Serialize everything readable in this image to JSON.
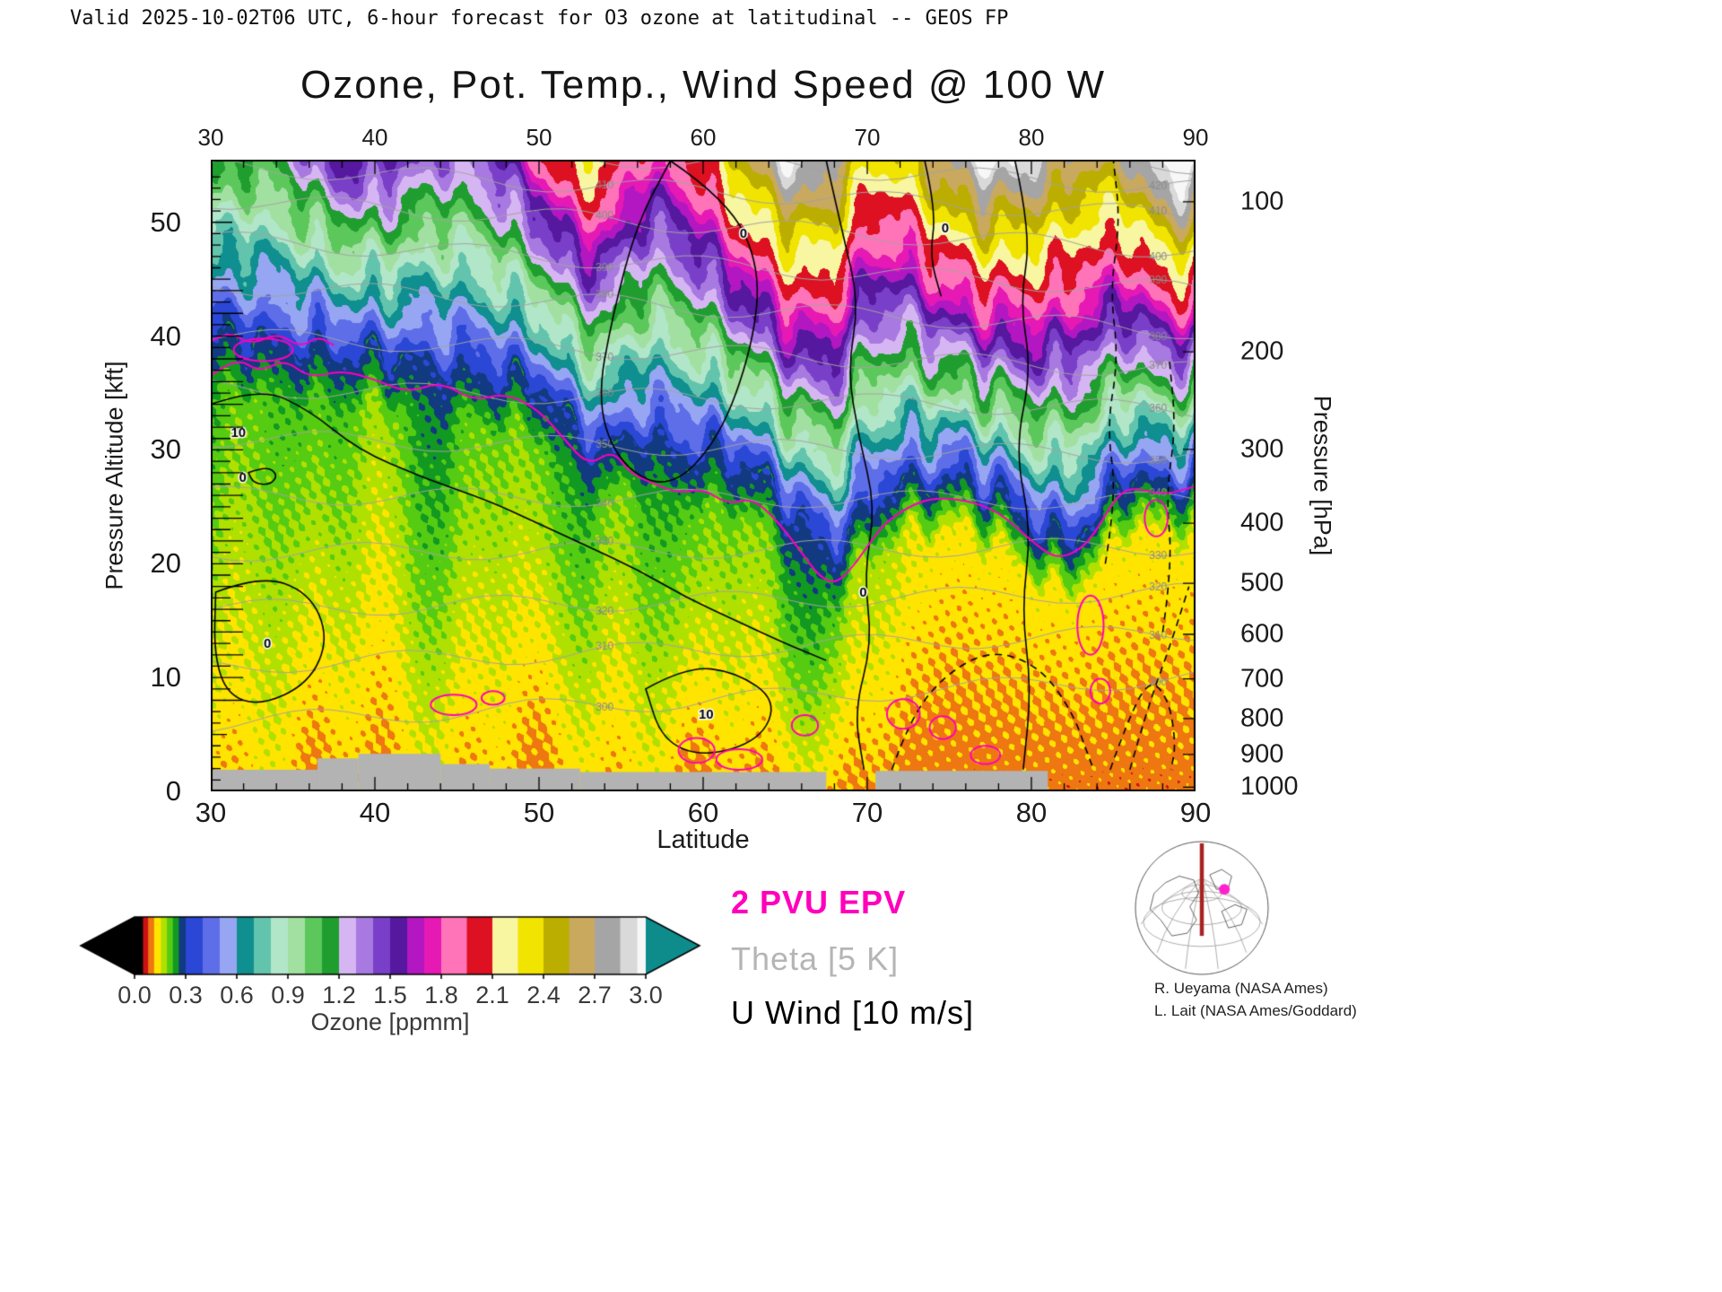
{
  "header": {
    "valid_line": "Valid 2025-10-02T06 UTC, 6-hour forecast for O3 ozone at latitudinal -- GEOS FP"
  },
  "title": "Ozone, Pot. Temp., Wind Speed @ 100 W",
  "axes": {
    "x": {
      "label": "Latitude",
      "min": 30,
      "max": 90,
      "ticks": [
        30,
        40,
        50,
        60,
        70,
        80,
        90
      ]
    },
    "y_left": {
      "label": "Pressure Altitude [kft]",
      "min": 0,
      "max": 55.5,
      "ticks": [
        0,
        10,
        20,
        30,
        40,
        50
      ]
    },
    "y_right": {
      "label": "Pressure [hPa]",
      "ticks": [
        100,
        200,
        300,
        400,
        500,
        600,
        700,
        800,
        900,
        1000
      ]
    }
  },
  "colorbar": {
    "label": "Ozone [ppmm]",
    "tick_labels": [
      "0.0",
      "0.3",
      "0.6",
      "0.9",
      "1.2",
      "1.5",
      "1.8",
      "2.1",
      "2.4",
      "2.7",
      "3.0"
    ],
    "min": 0.0,
    "max": 3.0,
    "under_color": "#000000",
    "over_color": "#0e8c8c",
    "stops": [
      {
        "v": 0.0,
        "c": "#000000"
      },
      {
        "v": 0.05,
        "c": "#cc1111"
      },
      {
        "v": 0.08,
        "c": "#ee7711"
      },
      {
        "v": 0.115,
        "c": "#ffe400"
      },
      {
        "v": 0.155,
        "c": "#b0e000"
      },
      {
        "v": 0.19,
        "c": "#55cc11"
      },
      {
        "v": 0.225,
        "c": "#119922"
      },
      {
        "v": 0.26,
        "c": "#123a80"
      },
      {
        "v": 0.3,
        "c": "#2b47d6"
      },
      {
        "v": 0.4,
        "c": "#5e6ee8"
      },
      {
        "v": 0.5,
        "c": "#97a6f2"
      },
      {
        "v": 0.6,
        "c": "#0f8f8f"
      },
      {
        "v": 0.7,
        "c": "#63c4ad"
      },
      {
        "v": 0.8,
        "c": "#b2e6c8"
      },
      {
        "v": 0.9,
        "c": "#a2e0a2"
      },
      {
        "v": 1.0,
        "c": "#5cc85c"
      },
      {
        "v": 1.1,
        "c": "#1f9e2f"
      },
      {
        "v": 1.2,
        "c": "#d6b6f2"
      },
      {
        "v": 1.3,
        "c": "#a879e0"
      },
      {
        "v": 1.4,
        "c": "#7a3fc8"
      },
      {
        "v": 1.5,
        "c": "#55189e"
      },
      {
        "v": 1.6,
        "c": "#b217c2"
      },
      {
        "v": 1.7,
        "c": "#e619b4"
      },
      {
        "v": 1.8,
        "c": "#ff74b8"
      },
      {
        "v": 1.95,
        "c": "#dd1122"
      },
      {
        "v": 2.1,
        "c": "#f8f6a0"
      },
      {
        "v": 2.25,
        "c": "#f0e400"
      },
      {
        "v": 2.4,
        "c": "#bcae00"
      },
      {
        "v": 2.55,
        "c": "#c9a95e"
      },
      {
        "v": 2.7,
        "c": "#a5a5a5"
      },
      {
        "v": 2.85,
        "c": "#d9d9d9"
      },
      {
        "v": 2.95,
        "c": "#f7f7f7"
      }
    ]
  },
  "legend": [
    {
      "label": "2 PVU EPV",
      "color": "#ff00bb"
    },
    {
      "label": "Theta [5 K]",
      "color": "#b5b5b5"
    },
    {
      "label": "U Wind [10 m/s]",
      "color": "#000000"
    }
  ],
  "credits": [
    "R. Ueyama (NASA Ames)",
    "L. Lait (NASA Ames/Goddard)"
  ],
  "chart_data": {
    "type": "heatmap",
    "title": "Ozone, Pot. Temp., Wind Speed @ 100 W",
    "xlabel": "Latitude",
    "ylabel": "Pressure Altitude [kft]",
    "xlim": [
      30,
      90
    ],
    "ylim": [
      0,
      55.5
    ],
    "field_units": "ppmm",
    "field_model": {
      "tropopause_kft": [
        [
          30,
          40
        ],
        [
          34,
          39.5
        ],
        [
          38,
          38.5
        ],
        [
          42,
          38
        ],
        [
          46,
          37
        ],
        [
          50,
          35.5
        ],
        [
          52,
          32
        ],
        [
          54,
          29.5
        ],
        [
          56,
          31.5
        ],
        [
          58,
          30.5
        ],
        [
          60,
          29.5
        ],
        [
          62,
          29
        ],
        [
          64,
          27
        ],
        [
          66,
          23.5
        ],
        [
          68,
          21
        ],
        [
          70,
          25
        ],
        [
          72,
          27
        ],
        [
          74,
          27.5
        ],
        [
          76,
          27.5
        ],
        [
          78,
          26
        ],
        [
          80,
          23.5
        ],
        [
          82,
          21.5
        ],
        [
          84,
          24
        ],
        [
          86,
          28
        ],
        [
          88,
          27
        ],
        [
          90,
          27.5
        ]
      ],
      "tropopause_value_ppmm": 0.3,
      "surface_value_ppmm": 0.118,
      "strat_gradient_ppmm_per_kft": 0.06,
      "strat_gradient_polar_increase_per_deg": 0.00045
    },
    "terrain_kft": [
      [
        30,
        36.5,
        1.9
      ],
      [
        36.5,
        39,
        2.9
      ],
      [
        39,
        44,
        3.3
      ],
      [
        44,
        47,
        2.4
      ],
      [
        47,
        52.5,
        2.0
      ],
      [
        52.5,
        67.5,
        1.7
      ],
      [
        70.5,
        81,
        1.8
      ]
    ],
    "theta_lines": [
      {
        "value": 300,
        "zL": 6,
        "zR": 10
      },
      {
        "value": 310,
        "zL": 11,
        "zR": 14
      },
      {
        "value": 320,
        "zL": 16,
        "zR": 17.5
      },
      {
        "value": 330,
        "zL": 21,
        "zR": 21.5
      },
      {
        "value": 340,
        "zL": 26,
        "zR": 25.5
      },
      {
        "value": 350,
        "zL": 31,
        "zR": 29.5
      },
      {
        "value": 360,
        "zL": 35.5,
        "zR": 33.5
      },
      {
        "value": 370,
        "zL": 40,
        "zR": 37
      },
      {
        "value": 380,
        "zL": 44.5,
        "zR": 40.5
      },
      {
        "value": 390,
        "zL": 48.5,
        "zR": 44
      },
      {
        "value": 400,
        "zL": 52,
        "zR": 47.5
      },
      {
        "value": 410,
        "zL": 55,
        "zR": 50.5
      },
      {
        "value": 420,
        "zL": 57.5,
        "zR": 53
      },
      {
        "value": 430,
        "zL": 60,
        "zR": 55
      }
    ],
    "wind_contours": [
      {
        "style": "solid",
        "label": "10",
        "label_at": [
          31.5,
          31.5
        ],
        "points": [
          [
            30,
            34
          ],
          [
            33,
            35.5
          ],
          [
            36,
            33.5
          ],
          [
            39,
            30
          ],
          [
            43,
            27.5
          ],
          [
            47,
            25.5
          ],
          [
            50,
            23.5
          ],
          [
            53,
            21.5
          ],
          [
            56,
            19.5
          ],
          [
            59,
            17
          ],
          [
            62,
            15
          ],
          [
            65,
            13
          ],
          [
            67.5,
            11.5
          ]
        ]
      },
      {
        "style": "solid",
        "label": "0",
        "label_at": [
          62.5,
          49
        ],
        "points": [
          [
            58,
            55.4
          ],
          [
            61.5,
            52
          ],
          [
            63.5,
            46
          ],
          [
            63,
            39
          ],
          [
            61,
            31
          ],
          [
            58,
            26.5
          ],
          [
            55,
            28.5
          ],
          [
            53.5,
            34
          ],
          [
            54.5,
            42
          ],
          [
            56,
            50
          ],
          [
            58,
            55.4
          ]
        ]
      },
      {
        "style": "solid",
        "label": "0",
        "label_at": [
          69.8,
          17.5
        ],
        "points": [
          [
            67.5,
            55.4
          ],
          [
            68.5,
            49
          ],
          [
            69.5,
            43
          ],
          [
            68.8,
            37
          ],
          [
            69.5,
            31
          ],
          [
            70.5,
            25
          ],
          [
            69.8,
            19
          ],
          [
            70.3,
            13
          ],
          [
            69.2,
            7
          ],
          [
            69.8,
            1.9
          ]
        ]
      },
      {
        "style": "solid",
        "label": "",
        "label_at": [
          79.6,
          33
        ],
        "points": [
          [
            79,
            55.4
          ],
          [
            80,
            49
          ],
          [
            79.3,
            43
          ],
          [
            80,
            37
          ],
          [
            79,
            30
          ],
          [
            80,
            23
          ],
          [
            79.4,
            16
          ],
          [
            80,
            9
          ],
          [
            79.5,
            1.9
          ]
        ]
      },
      {
        "style": "solid",
        "label": "0",
        "label_at": [
          33.5,
          13
        ],
        "points": [
          [
            30.3,
            17.5
          ],
          [
            33,
            19
          ],
          [
            36,
            17.5
          ],
          [
            37.2,
            13.5
          ],
          [
            36,
            9.5
          ],
          [
            33,
            7.5
          ],
          [
            31,
            8.5
          ],
          [
            30.2,
            12
          ],
          [
            30.3,
            17.5
          ]
        ]
      },
      {
        "style": "solid",
        "label": "0",
        "label_at": [
          32.0,
          27.6
        ],
        "points": [
          [
            32.3,
            28
          ],
          [
            33.4,
            28.6
          ],
          [
            34.1,
            27.8
          ],
          [
            33.6,
            26.9
          ],
          [
            32.6,
            27.1
          ],
          [
            32.3,
            28
          ]
        ]
      },
      {
        "style": "solid",
        "label": "10",
        "label_at": [
          60,
          6.8
        ],
        "points": [
          [
            56.5,
            9
          ],
          [
            59,
            11
          ],
          [
            62,
            10.5
          ],
          [
            64.5,
            8
          ],
          [
            63.5,
            4.5
          ],
          [
            60,
            3
          ],
          [
            57.5,
            4.5
          ],
          [
            56.5,
            9
          ]
        ]
      },
      {
        "style": "dashed",
        "label": "",
        "label_at": [
          77,
          9
        ],
        "points": [
          [
            71.5,
            1.9
          ],
          [
            72.5,
            6
          ],
          [
            74.5,
            10
          ],
          [
            77.5,
            12.5
          ],
          [
            80.5,
            11
          ],
          [
            82.5,
            7
          ],
          [
            83.5,
            3
          ],
          [
            83.8,
            1.9
          ]
        ]
      },
      {
        "style": "dashed",
        "label": "",
        "label_at": [
          87,
          7
        ],
        "points": [
          [
            84.8,
            1.9
          ],
          [
            85.8,
            6
          ],
          [
            87.2,
            10
          ],
          [
            88.4,
            8
          ],
          [
            88.8,
            4
          ],
          [
            88.5,
            1.9
          ]
        ]
      },
      {
        "style": "dashed",
        "label": "",
        "label_at": [
          85,
          36
        ],
        "points": [
          [
            84.5,
            20
          ],
          [
            85.2,
            26
          ],
          [
            84.6,
            32
          ],
          [
            85.3,
            38
          ],
          [
            84.8,
            44
          ],
          [
            85.4,
            50
          ],
          [
            85,
            55.4
          ]
        ]
      },
      {
        "style": "dashed",
        "label": "",
        "label_at": [
          88.5,
          26
        ],
        "points": [
          [
            88,
            14
          ],
          [
            88.6,
            20
          ],
          [
            88.2,
            26
          ],
          [
            88.8,
            32
          ],
          [
            88.4,
            38
          ]
        ]
      },
      {
        "style": "dashed",
        "label": "",
        "label_at": [
          88,
          12
        ],
        "points": [
          [
            86,
            1.9
          ],
          [
            87,
            7
          ],
          [
            88.5,
            13
          ],
          [
            89.6,
            18
          ]
        ]
      },
      {
        "style": "solid",
        "label": "0",
        "label_at": [
          74.8,
          49.5
        ],
        "points": [
          [
            73.5,
            55.4
          ],
          [
            74.2,
            51
          ],
          [
            73.8,
            47
          ],
          [
            74.5,
            43.5
          ]
        ]
      }
    ],
    "pvu_contour": {
      "value_pvu": 2,
      "main": [
        [
          30,
          36.5
        ],
        [
          31.5,
          38.2
        ],
        [
          33,
          36.8
        ],
        [
          34.5,
          38
        ],
        [
          36,
          36.3
        ],
        [
          38,
          37
        ],
        [
          40,
          36.2
        ],
        [
          42,
          35
        ],
        [
          44,
          36
        ],
        [
          46,
          34.3
        ],
        [
          48,
          35
        ],
        [
          50,
          33.5
        ],
        [
          51.5,
          31
        ],
        [
          53,
          28.6
        ],
        [
          54.5,
          30
        ],
        [
          55.5,
          28
        ],
        [
          57,
          27
        ],
        [
          58.5,
          26.2
        ],
        [
          60,
          26.6
        ],
        [
          61.5,
          25.2
        ],
        [
          63,
          25.8
        ],
        [
          64.5,
          23.8
        ],
        [
          66,
          21
        ],
        [
          67,
          19
        ],
        [
          68,
          18.2
        ],
        [
          69,
          19.5
        ],
        [
          70,
          21.5
        ],
        [
          71,
          23.5
        ],
        [
          72.5,
          25
        ],
        [
          74,
          25.8
        ],
        [
          76,
          25.6
        ],
        [
          78,
          24.6
        ],
        [
          80,
          22
        ],
        [
          81.5,
          20.4
        ],
        [
          83,
          21.2
        ],
        [
          84,
          23
        ],
        [
          85,
          25.5
        ],
        [
          86,
          26.8
        ],
        [
          88,
          26
        ],
        [
          90,
          26.8
        ]
      ],
      "strand2": [
        [
          30,
          39.5
        ],
        [
          31,
          40.5
        ],
        [
          32.5,
          39.2
        ],
        [
          34,
          40.3
        ],
        [
          35.5,
          39
        ],
        [
          36.5,
          40
        ],
        [
          37.5,
          39.2
        ]
      ],
      "loops": [
        [
          44.8,
          7.6,
          1.4,
          0.9
        ],
        [
          47.2,
          8.2,
          0.7,
          0.6
        ],
        [
          59.6,
          3.6,
          1.1,
          1.1
        ],
        [
          62.2,
          2.8,
          1.4,
          0.9
        ],
        [
          66.2,
          5.8,
          0.8,
          0.9
        ],
        [
          72.2,
          6.8,
          1.0,
          1.3
        ],
        [
          74.6,
          5.6,
          0.8,
          1.0
        ],
        [
          77.2,
          3.2,
          0.9,
          0.8
        ],
        [
          83.6,
          14.6,
          0.8,
          2.6
        ],
        [
          84.2,
          8.8,
          0.6,
          1.1
        ],
        [
          87.6,
          24.0,
          0.7,
          1.6
        ],
        [
          33.2,
          38.8,
          1.8,
          1.0
        ]
      ]
    }
  },
  "inset_map": {
    "red_meridian_color": "#a82222",
    "dot_color": "#ff22cc",
    "coast1": [
      [
        -0.62,
        0.18
      ],
      [
        -0.78,
        0.02
      ],
      [
        -0.72,
        -0.22
      ],
      [
        -0.55,
        -0.38
      ],
      [
        -0.34,
        -0.48
      ],
      [
        -0.12,
        -0.42
      ],
      [
        -0.05,
        -0.22
      ],
      [
        -0.18,
        -0.02
      ],
      [
        -0.08,
        0.18
      ],
      [
        -0.22,
        0.38
      ],
      [
        -0.45,
        0.42
      ],
      [
        -0.62,
        0.18
      ]
    ],
    "coast2": [
      [
        0.12,
        -0.5
      ],
      [
        0.3,
        -0.58
      ],
      [
        0.45,
        -0.48
      ],
      [
        0.4,
        -0.3
      ],
      [
        0.22,
        -0.28
      ],
      [
        0.12,
        -0.5
      ]
    ],
    "coast3": [
      [
        0.3,
        0.05
      ],
      [
        0.5,
        -0.05
      ],
      [
        0.68,
        0.02
      ],
      [
        0.6,
        0.25
      ],
      [
        0.4,
        0.3
      ],
      [
        0.3,
        0.05
      ]
    ]
  }
}
